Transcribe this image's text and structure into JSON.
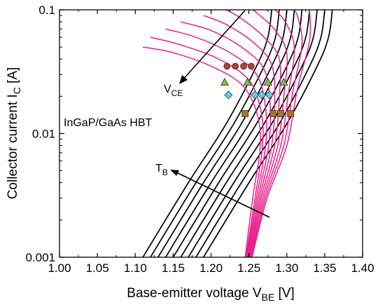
{
  "chart_data": {
    "type": "line",
    "title": "",
    "xlabel": {
      "main": "Base-emitter voltage V",
      "sub": "BE",
      "unit": " [V]"
    },
    "ylabel": {
      "main": "Collector current I",
      "sub": "C",
      "unit": " [A]"
    },
    "xlim": [
      1.0,
      1.4
    ],
    "ylim": [
      0.001,
      0.1
    ],
    "yscale": "log",
    "x_ticks": [
      "1.00",
      "1.05",
      "1.10",
      "1.15",
      "1.20",
      "1.25",
      "1.30",
      "1.35",
      "1.40"
    ],
    "y_ticks": [
      {
        "value": 0.001,
        "label": "0.001"
      },
      {
        "value": 0.01,
        "label": "0.01"
      },
      {
        "value": 0.1,
        "label": "0.1"
      }
    ],
    "grid": false,
    "legend": "none",
    "annotations": {
      "device": "InGaP/GaAs HBT",
      "vce": {
        "main": "V",
        "sub": "CE"
      },
      "tb": {
        "main": "T",
        "sub": "B"
      }
    },
    "colors": {
      "black_curves": "#000000",
      "magenta_curves": "#e8218c",
      "circle": "#b5402a",
      "triangle": "#7ec242",
      "diamond": "#5fcfe0",
      "square": "#a8741e",
      "marker_edge": "#333333"
    },
    "series": [
      {
        "style": "black-curves",
        "curves": [
          {
            "points": [
              [
                1.11,
                0.001
              ],
              [
                1.17,
                0.004
              ],
              [
                1.22,
                0.012
              ],
              [
                1.26,
                0.035
              ],
              [
                1.275,
                0.06
              ],
              [
                1.28,
                0.1
              ]
            ]
          },
          {
            "points": [
              [
                1.12,
                0.001
              ],
              [
                1.18,
                0.004
              ],
              [
                1.23,
                0.012
              ],
              [
                1.27,
                0.035
              ],
              [
                1.285,
                0.06
              ],
              [
                1.29,
                0.1
              ]
            ]
          },
          {
            "points": [
              [
                1.13,
                0.001
              ],
              [
                1.19,
                0.004
              ],
              [
                1.24,
                0.012
              ],
              [
                1.28,
                0.035
              ],
              [
                1.295,
                0.06
              ],
              [
                1.3,
                0.1
              ]
            ]
          },
          {
            "points": [
              [
                1.14,
                0.001
              ],
              [
                1.2,
                0.004
              ],
              [
                1.25,
                0.012
              ],
              [
                1.29,
                0.035
              ],
              [
                1.305,
                0.06
              ],
              [
                1.31,
                0.1
              ]
            ]
          },
          {
            "points": [
              [
                1.15,
                0.001
              ],
              [
                1.21,
                0.004
              ],
              [
                1.26,
                0.012
              ],
              [
                1.3,
                0.035
              ],
              [
                1.315,
                0.06
              ],
              [
                1.32,
                0.1
              ]
            ]
          },
          {
            "points": [
              [
                1.16,
                0.001
              ],
              [
                1.22,
                0.004
              ],
              [
                1.27,
                0.012
              ],
              [
                1.31,
                0.035
              ],
              [
                1.325,
                0.06
              ],
              [
                1.33,
                0.1
              ]
            ]
          },
          {
            "points": [
              [
                1.17,
                0.001
              ],
              [
                1.23,
                0.004
              ],
              [
                1.28,
                0.012
              ],
              [
                1.32,
                0.035
              ],
              [
                1.335,
                0.06
              ],
              [
                1.34,
                0.1
              ]
            ]
          },
          {
            "points": [
              [
                1.18,
                0.001
              ],
              [
                1.24,
                0.004
              ],
              [
                1.29,
                0.012
              ],
              [
                1.33,
                0.035
              ],
              [
                1.345,
                0.06
              ],
              [
                1.35,
                0.1
              ]
            ]
          },
          {
            "points": [
              [
                1.19,
                0.001
              ],
              [
                1.25,
                0.004
              ],
              [
                1.3,
                0.012
              ],
              [
                1.34,
                0.035
              ],
              [
                1.355,
                0.06
              ],
              [
                1.36,
                0.1
              ]
            ]
          }
        ]
      },
      {
        "style": "magenta-curves",
        "curves": [
          {
            "points": [
              [
                1.245,
                0.001
              ],
              [
                1.255,
                0.003
              ],
              [
                1.265,
                0.008
              ],
              [
                1.26,
                0.015
              ],
              [
                1.24,
                0.025
              ],
              [
                1.2,
                0.035
              ],
              [
                1.15,
                0.045
              ],
              [
                1.11,
                0.05
              ]
            ]
          },
          {
            "points": [
              [
                1.246,
                0.001
              ],
              [
                1.258,
                0.003
              ],
              [
                1.268,
                0.008
              ],
              [
                1.266,
                0.015
              ],
              [
                1.25,
                0.027
              ],
              [
                1.21,
                0.04
              ],
              [
                1.16,
                0.052
              ],
              [
                1.12,
                0.06
              ]
            ]
          },
          {
            "points": [
              [
                1.247,
                0.001
              ],
              [
                1.26,
                0.003
              ],
              [
                1.272,
                0.008
              ],
              [
                1.272,
                0.016
              ],
              [
                1.26,
                0.03
              ],
              [
                1.225,
                0.045
              ],
              [
                1.18,
                0.06
              ],
              [
                1.14,
                0.07
              ]
            ]
          },
          {
            "points": [
              [
                1.248,
                0.001
              ],
              [
                1.262,
                0.003
              ],
              [
                1.276,
                0.008
              ],
              [
                1.278,
                0.017
              ],
              [
                1.27,
                0.033
              ],
              [
                1.24,
                0.05
              ],
              [
                1.2,
                0.068
              ],
              [
                1.16,
                0.08
              ]
            ]
          },
          {
            "points": [
              [
                1.249,
                0.001
              ],
              [
                1.264,
                0.003
              ],
              [
                1.28,
                0.008
              ],
              [
                1.284,
                0.018
              ],
              [
                1.28,
                0.036
              ],
              [
                1.255,
                0.055
              ],
              [
                1.22,
                0.076
              ],
              [
                1.19,
                0.09
              ]
            ]
          },
          {
            "points": [
              [
                1.25,
                0.001
              ],
              [
                1.266,
                0.003
              ],
              [
                1.284,
                0.008
              ],
              [
                1.29,
                0.019
              ],
              [
                1.29,
                0.04
              ],
              [
                1.27,
                0.06
              ],
              [
                1.24,
                0.085
              ],
              [
                1.22,
                0.1
              ]
            ]
          },
          {
            "points": [
              [
                1.251,
                0.001
              ],
              [
                1.268,
                0.003
              ],
              [
                1.288,
                0.008
              ],
              [
                1.296,
                0.02
              ],
              [
                1.3,
                0.044
              ],
              [
                1.285,
                0.068
              ],
              [
                1.26,
                0.095
              ],
              [
                1.255,
                0.1
              ]
            ]
          },
          {
            "points": [
              [
                1.252,
                0.001
              ],
              [
                1.27,
                0.003
              ],
              [
                1.292,
                0.008
              ],
              [
                1.302,
                0.021
              ],
              [
                1.31,
                0.048
              ],
              [
                1.3,
                0.076
              ],
              [
                1.285,
                0.1
              ]
            ]
          },
          {
            "points": [
              [
                1.253,
                0.001
              ],
              [
                1.272,
                0.003
              ],
              [
                1.296,
                0.008
              ],
              [
                1.308,
                0.022
              ],
              [
                1.32,
                0.052
              ],
              [
                1.315,
                0.085
              ],
              [
                1.31,
                0.1
              ]
            ]
          },
          {
            "points": [
              [
                1.254,
                0.001
              ],
              [
                1.274,
                0.003
              ],
              [
                1.3,
                0.008
              ],
              [
                1.314,
                0.023
              ],
              [
                1.33,
                0.056
              ],
              [
                1.33,
                0.1
              ]
            ]
          }
        ]
      }
    ],
    "markers": [
      {
        "shape": "circle",
        "points": [
          [
            1.221,
            0.035
          ],
          [
            1.232,
            0.035
          ],
          [
            1.243,
            0.035
          ],
          [
            1.253,
            0.035
          ]
        ]
      },
      {
        "shape": "triangle",
        "points": [
          [
            1.218,
            0.026
          ],
          [
            1.248,
            0.026
          ],
          [
            1.275,
            0.026
          ],
          [
            1.296,
            0.026
          ]
        ]
      },
      {
        "shape": "diamond",
        "points": [
          [
            1.223,
            0.0205
          ],
          [
            1.258,
            0.0205
          ],
          [
            1.267,
            0.0205
          ],
          [
            1.277,
            0.0205
          ]
        ]
      },
      {
        "shape": "square",
        "points": [
          [
            1.245,
            0.0145
          ],
          [
            1.282,
            0.0145
          ],
          [
            1.292,
            0.0145
          ],
          [
            1.305,
            0.0145
          ]
        ]
      }
    ]
  }
}
